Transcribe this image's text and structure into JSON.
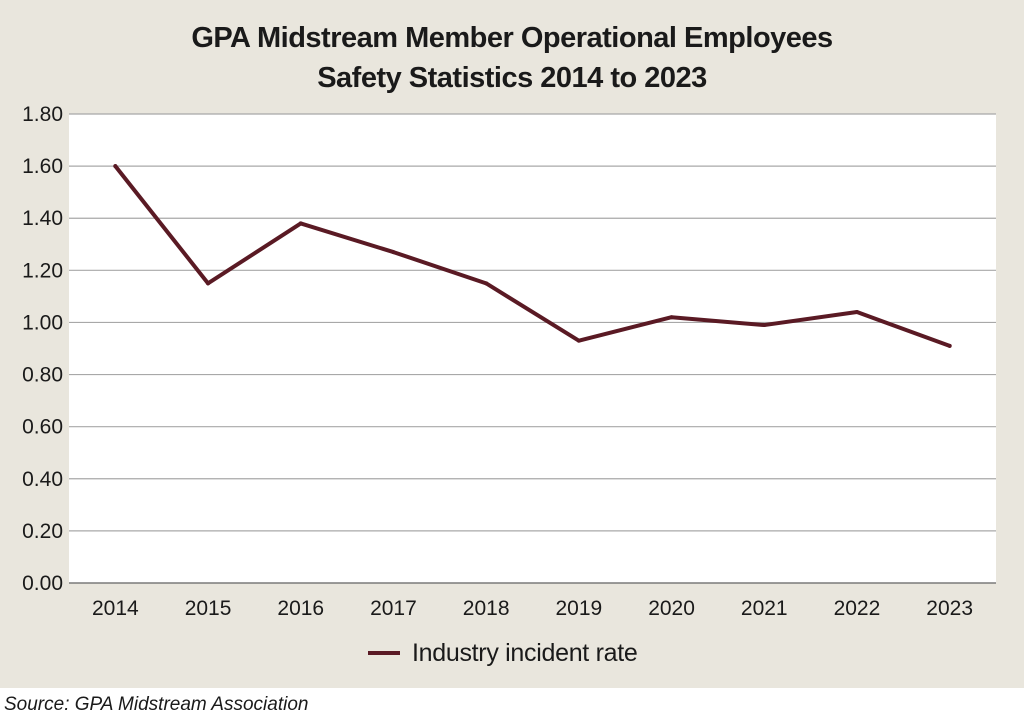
{
  "chart_data": {
    "type": "line",
    "title": "GPA Midstream Member Operational Employees",
    "subtitle": "Safety Statistics 2014 to 2023",
    "xlabel": "",
    "ylabel": "",
    "categories": [
      "2014",
      "2015",
      "2016",
      "2017",
      "2018",
      "2019",
      "2020",
      "2021",
      "2022",
      "2023"
    ],
    "series": [
      {
        "name": "Industry incident rate",
        "color": "#5a1a24",
        "values": [
          1.6,
          1.15,
          1.38,
          1.27,
          1.15,
          0.93,
          1.02,
          0.99,
          1.04,
          0.91
        ]
      }
    ],
    "ylim": [
      0,
      1.8
    ],
    "yticks": [
      "0.00",
      "0.20",
      "0.40",
      "0.60",
      "0.80",
      "1.00",
      "1.20",
      "1.40",
      "1.60",
      "1.80"
    ],
    "grid": true,
    "legend_position": "bottom-center"
  },
  "colors": {
    "figure_background": "#e9e6dd",
    "plot_background": "#ffffff",
    "gridline": "#a8a8a8",
    "series_line": "#5a1a24",
    "text": "#1a1a1a"
  },
  "source": "Source: GPA Midstream Association"
}
